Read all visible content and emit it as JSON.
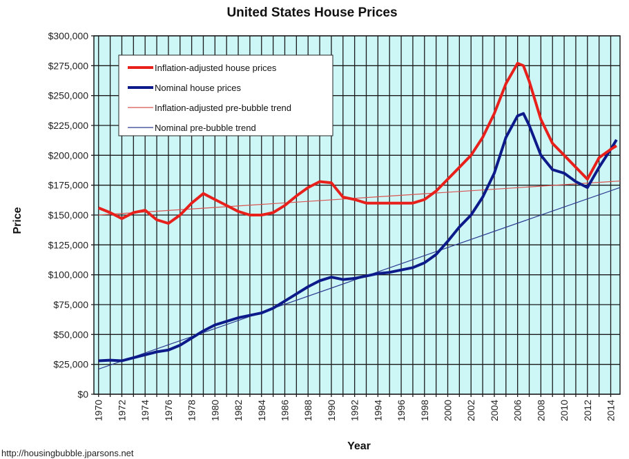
{
  "chart_data": {
    "type": "line",
    "title": "United States House Prices",
    "xlabel": "Year",
    "ylabel": "Price",
    "xlim": [
      1969.6,
      2014.8
    ],
    "ylim": [
      0,
      300000
    ],
    "grid": true,
    "legend_position": "top-left",
    "x_ticks": [
      "1970",
      "1972",
      "1974",
      "1976",
      "1978",
      "1980",
      "1982",
      "1984",
      "1986",
      "1988",
      "1990",
      "1992",
      "1994",
      "1996",
      "1998",
      "2000",
      "2002",
      "2004",
      "2006",
      "2008",
      "2010",
      "2012",
      "2014"
    ],
    "y_ticks": [
      "$0",
      "$25,000",
      "$50,000",
      "$75,000",
      "$100,000",
      "$125,000",
      "$150,000",
      "$175,000",
      "$200,000",
      "$225,000",
      "$250,000",
      "$275,000",
      "$300,000"
    ],
    "colors": {
      "plot_bg": "#cdf6f6",
      "grid": "#1a1a1a",
      "real": "#e8201c",
      "nominal": "#0d1a8a",
      "real_trend": "#d9534f",
      "nominal_trend": "#2b3a8f"
    },
    "series": [
      {
        "name": "Inflation-adjusted house prices",
        "x": [
          1970,
          1971,
          1972,
          1973,
          1974,
          1975,
          1976,
          1977,
          1978,
          1979,
          1980,
          1981,
          1982,
          1983,
          1984,
          1985,
          1986,
          1987,
          1988,
          1989,
          1990,
          1991,
          1992,
          1993,
          1994,
          1995,
          1996,
          1997,
          1998,
          1999,
          2000,
          2001,
          2002,
          2003,
          2004,
          2005,
          2006,
          2006.5,
          2007,
          2008,
          2009,
          2010,
          2011,
          2012,
          2013,
          2014,
          2014.5
        ],
        "y": [
          156000,
          152000,
          147000,
          152000,
          154000,
          146000,
          143000,
          150000,
          160000,
          168000,
          163000,
          158000,
          153000,
          150000,
          150000,
          152000,
          158000,
          166000,
          173000,
          178000,
          177000,
          165000,
          163000,
          160000,
          160000,
          160000,
          160000,
          160000,
          163000,
          170000,
          180000,
          190000,
          200000,
          215000,
          235000,
          260000,
          277000,
          275000,
          262000,
          230000,
          210000,
          200000,
          190000,
          180000,
          198000,
          205000,
          208000
        ]
      },
      {
        "name": "Nominal house prices",
        "x": [
          1970,
          1971,
          1972,
          1973,
          1974,
          1975,
          1976,
          1977,
          1978,
          1979,
          1980,
          1981,
          1982,
          1983,
          1984,
          1985,
          1986,
          1987,
          1988,
          1989,
          1990,
          1991,
          1992,
          1993,
          1994,
          1995,
          1996,
          1997,
          1998,
          1999,
          2000,
          2001,
          2002,
          2003,
          2004,
          2005,
          2006,
          2006.5,
          2007,
          2008,
          2009,
          2010,
          2011,
          2012,
          2013,
          2014,
          2014.5
        ],
        "y": [
          28000,
          28500,
          28000,
          30500,
          33000,
          35500,
          37000,
          41000,
          47000,
          53000,
          58000,
          61000,
          64000,
          66000,
          68000,
          72000,
          78000,
          84000,
          90000,
          95000,
          98000,
          96000,
          97000,
          99000,
          101000,
          102000,
          104000,
          106000,
          110000,
          117000,
          128000,
          140000,
          150000,
          165000,
          185000,
          215000,
          233000,
          235000,
          225000,
          200000,
          188000,
          185000,
          178000,
          173000,
          190000,
          205000,
          213000
        ]
      },
      {
        "name": "Inflation-adjusted pre-bubble trend",
        "x": [
          1970,
          2014.8
        ],
        "y": [
          150000,
          178500
        ]
      },
      {
        "name": "Nominal pre-bubble trend",
        "x": [
          1970,
          2014.8
        ],
        "y": [
          21000,
          173000
        ]
      }
    ]
  },
  "footer": "http://housingbubble.jparsons.net"
}
